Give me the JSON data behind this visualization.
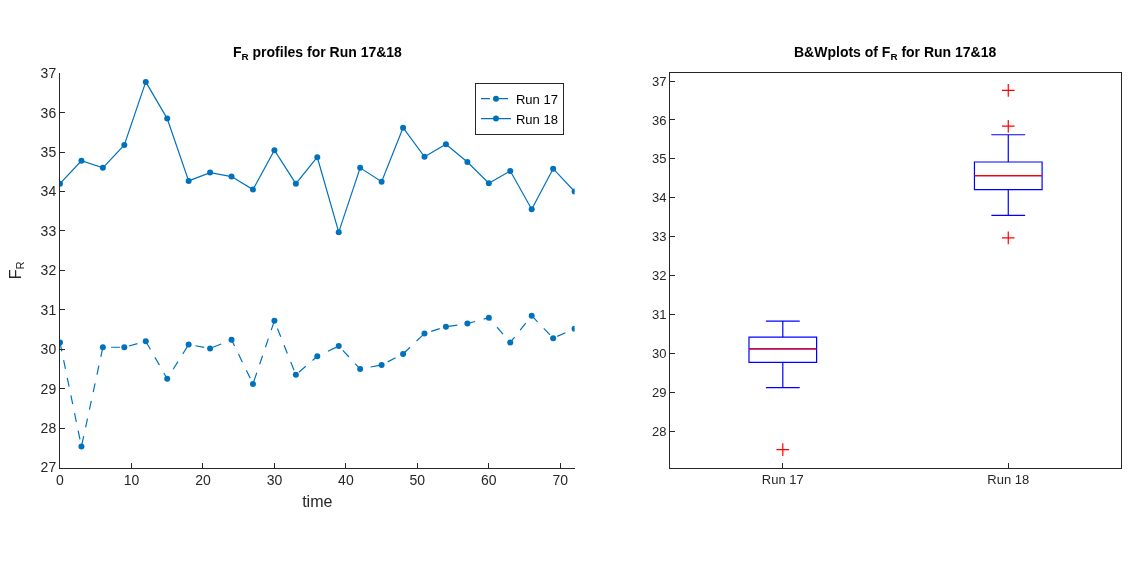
{
  "chart_data": [
    {
      "type": "line",
      "title": "F$_{R}$ profiles for Run 17&18",
      "xlabel": "time",
      "ylabel": "F$_{R}$",
      "x": [
        0,
        3,
        6,
        9,
        12,
        15,
        18,
        21,
        24,
        27,
        30,
        33,
        36,
        39,
        42,
        45,
        48,
        51,
        54,
        57,
        60,
        63,
        66,
        69,
        72
      ],
      "xlim": [
        0,
        72
      ],
      "xticks": [
        0,
        10,
        20,
        30,
        40,
        50,
        60,
        70
      ],
      "ylim": [
        27,
        37
      ],
      "yticks": [
        27,
        28,
        29,
        30,
        31,
        32,
        33,
        34,
        35,
        36,
        37
      ],
      "legend": "top right",
      "marker": "circle",
      "series": [
        {
          "name": "Run 17",
          "color": "#0072bd",
          "line_style": "dashed",
          "values": [
            30.17,
            27.53,
            30.05,
            30.05,
            30.2,
            29.25,
            30.12,
            30.02,
            30.24,
            29.12,
            30.72,
            29.35,
            29.82,
            30.08,
            29.5,
            29.6,
            29.88,
            30.4,
            30.57,
            30.65,
            30.8,
            30.17,
            30.85,
            30.28,
            30.52
          ]
        },
        {
          "name": "Run 18",
          "color": "#0072bd",
          "line_style": "solid",
          "values": [
            34.2,
            34.78,
            34.6,
            35.18,
            36.78,
            35.85,
            34.27,
            34.48,
            34.38,
            34.05,
            35.05,
            34.2,
            34.87,
            32.97,
            34.6,
            34.25,
            35.62,
            34.88,
            35.2,
            34.75,
            34.21,
            34.52,
            33.55,
            34.58,
            34.0
          ]
        }
      ]
    },
    {
      "type": "box",
      "title": "B&Wplots of F$_{R}$ for Run 17&18",
      "categories": [
        "Run 17",
        "Run 18"
      ],
      "ylim": [
        27.07,
        37.2
      ],
      "yticks": [
        28,
        29,
        30,
        31,
        32,
        33,
        34,
        35,
        36,
        37
      ],
      "series": [
        {
          "color": "#0000ff",
          "boxes": [
            {
              "low": 29.12,
              "q1": 29.77,
              "median": 30.12,
              "q3": 30.42,
              "high": 30.83,
              "outliers": [
                27.53
              ]
            },
            {
              "low": 33.55,
              "q1": 34.21,
              "median": 34.57,
              "q3": 34.92,
              "high": 35.62,
              "outliers": [
                36.76,
                35.84,
                32.97
              ]
            }
          ]
        }
      ]
    }
  ]
}
